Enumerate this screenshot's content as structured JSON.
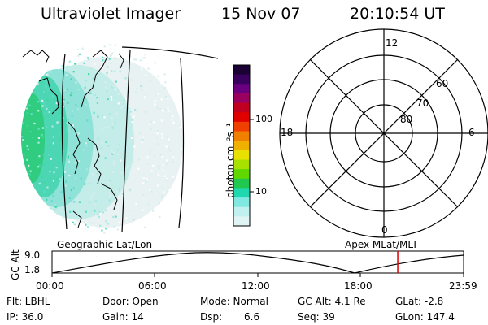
{
  "header": {
    "instrument": "Ultraviolet Imager",
    "date": "15 Nov 07",
    "time": "20:10:54 UT"
  },
  "colorbar": {
    "unit_label": "photon cm⁻²s⁻¹",
    "tick_100": "100",
    "tick_10": "10",
    "colors": [
      "#1a0033",
      "#3a0060",
      "#6a0080",
      "#9a0060",
      "#c00020",
      "#e00000",
      "#f04000",
      "#f08000",
      "#f0b000",
      "#e8e000",
      "#a8e000",
      "#60d800",
      "#20c850",
      "#20d8b0",
      "#80e8e0",
      "#c0f0f0",
      "#e0f4f4"
    ]
  },
  "left_panel": {
    "caption": "Geographic Lat/Lon"
  },
  "right_panel": {
    "caption": "Apex  MLat/MLT",
    "mlt_top": "12",
    "mlt_bottom": "0",
    "mlt_left": "18",
    "mlt_right": "6",
    "lat_60": "60",
    "lat_70": "70",
    "lat_80": "80"
  },
  "altitude_plot": {
    "ylabel": "GC Alt",
    "y_max": "9.0",
    "y_min": "1.8",
    "x_ticks": [
      "00:00",
      "06:00",
      "12:00",
      "18:00",
      "23:59"
    ],
    "current_time_marker_color": "#dd0000",
    "current_time_fraction": 0.84
  },
  "status": {
    "row1": {
      "filter": "Flt: LBHL",
      "door": "Door: Open",
      "mode": "Mode: Normal",
      "gc_alt": "GC Alt: 4.1 Re",
      "glat": "GLat:   -2.8"
    },
    "row2": {
      "ip": "IP: 36.0",
      "gain": "Gain: 14",
      "dsp_label": "Dsp:",
      "dsp_value": "6.6",
      "seq": "Seq: 39",
      "glon": "GLon: 147.4"
    }
  }
}
